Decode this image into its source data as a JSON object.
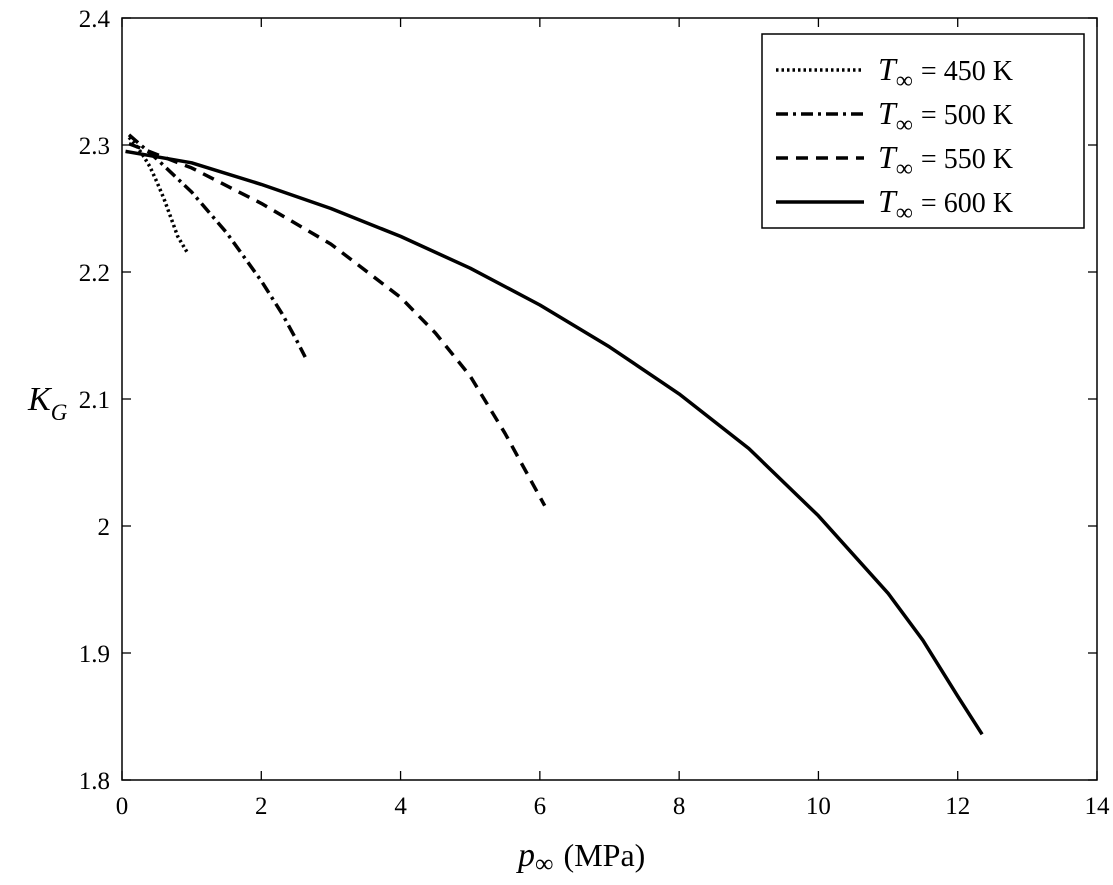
{
  "chart_data": {
    "type": "line",
    "xlabel": {
      "symbol": "p",
      "subscript": "∞",
      "unit": "(MPa)"
    },
    "ylabel": {
      "symbol": "K",
      "subscript": "G"
    },
    "xlim": [
      0,
      14
    ],
    "ylim": [
      1.8,
      2.4
    ],
    "xticks": [
      "0",
      "2",
      "4",
      "6",
      "8",
      "10",
      "12",
      "14"
    ],
    "yticks": [
      "1.8",
      "1.9",
      "2",
      "2.1",
      "2.2",
      "2.3",
      "2.4"
    ],
    "grid": false,
    "legend_position": "top-right",
    "series": [
      {
        "name": "T∞ = 450 K",
        "legend": {
          "symbol": "T",
          "subscript": "∞",
          "text": "= 450 K"
        },
        "line_style": "dotted",
        "x": [
          0.1,
          0.2,
          0.3,
          0.4,
          0.5,
          0.6,
          0.7,
          0.8,
          0.93
        ],
        "y": [
          2.306,
          2.3,
          2.292,
          2.283,
          2.271,
          2.258,
          2.243,
          2.228,
          2.216
        ]
      },
      {
        "name": "T∞ = 500 K",
        "legend": {
          "symbol": "T",
          "subscript": "∞",
          "text": "= 500 K"
        },
        "line_style": "dashdot",
        "x": [
          0.1,
          0.5,
          1.0,
          1.5,
          2.0,
          2.3,
          2.5,
          2.63
        ],
        "y": [
          2.308,
          2.289,
          2.263,
          2.231,
          2.193,
          2.167,
          2.147,
          2.133
        ]
      },
      {
        "name": "T∞ = 550 K",
        "legend": {
          "symbol": "T",
          "subscript": "∞",
          "text": "= 550 K"
        },
        "line_style": "dashed",
        "x": [
          0.1,
          1.0,
          2.0,
          3.0,
          4.0,
          4.5,
          5.0,
          5.5,
          6.07
        ],
        "y": [
          2.301,
          2.282,
          2.254,
          2.222,
          2.18,
          2.152,
          2.118,
          2.073,
          2.016
        ]
      },
      {
        "name": "T∞ = 600 K",
        "legend": {
          "symbol": "T",
          "subscript": "∞",
          "text": "= 600 K"
        },
        "line_style": "solid",
        "x": [
          0.05,
          1,
          2,
          3,
          4,
          5,
          6,
          7,
          8,
          9,
          10,
          11,
          11.5,
          12,
          12.35
        ],
        "y": [
          2.295,
          2.286,
          2.269,
          2.25,
          2.228,
          2.203,
          2.174,
          2.141,
          2.104,
          2.061,
          2.008,
          1.947,
          1.91,
          1.866,
          1.836
        ]
      }
    ]
  }
}
